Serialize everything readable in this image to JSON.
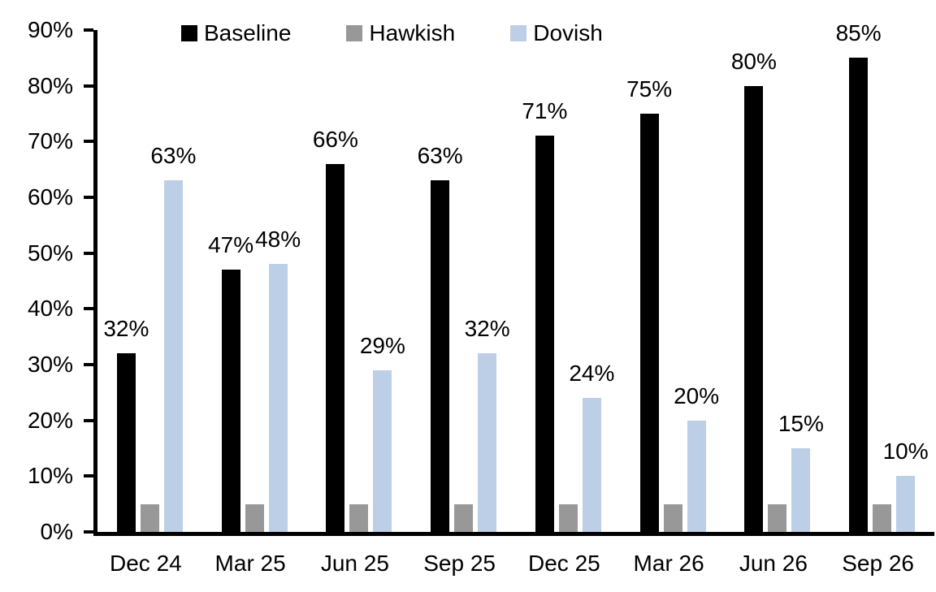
{
  "colors": {
    "background": "#ffffff",
    "axis": "#000000",
    "text": "#000000",
    "baseline": "#000000",
    "hawkish": "#989898",
    "dovish": "#BCCFE6"
  },
  "chart_data": {
    "type": "bar",
    "categories": [
      "Dec 24",
      "Mar 25",
      "Jun 25",
      "Sep 25",
      "Dec 25",
      "Mar 26",
      "Jun 26",
      "Sep 26"
    ],
    "series": [
      {
        "name": "Baseline",
        "color": "#000000",
        "values": [
          32,
          47,
          66,
          63,
          71,
          75,
          80,
          85
        ],
        "data_labels": [
          "32%",
          "47%",
          "66%",
          "63%",
          "71%",
          "75%",
          "80%",
          "85%"
        ],
        "show_labels": true
      },
      {
        "name": "Hawkish",
        "color": "#989898",
        "values": [
          5,
          5,
          5,
          5,
          5,
          5,
          5,
          5
        ],
        "data_labels": [],
        "show_labels": false
      },
      {
        "name": "Dovish",
        "color": "#BCCFE6",
        "values": [
          63,
          48,
          29,
          32,
          24,
          20,
          15,
          10
        ],
        "data_labels": [
          "63%",
          "48%",
          "29%",
          "32%",
          "24%",
          "20%",
          "15%",
          "10%"
        ],
        "show_labels": true
      }
    ],
    "title": "",
    "xlabel": "",
    "ylabel": "",
    "ylim": [
      0,
      90
    ],
    "ytick_step": 10,
    "ytick_labels": [
      "0%",
      "10%",
      "20%",
      "30%",
      "40%",
      "50%",
      "60%",
      "70%",
      "80%",
      "90%"
    ],
    "legend_position": "top",
    "grid": false
  }
}
